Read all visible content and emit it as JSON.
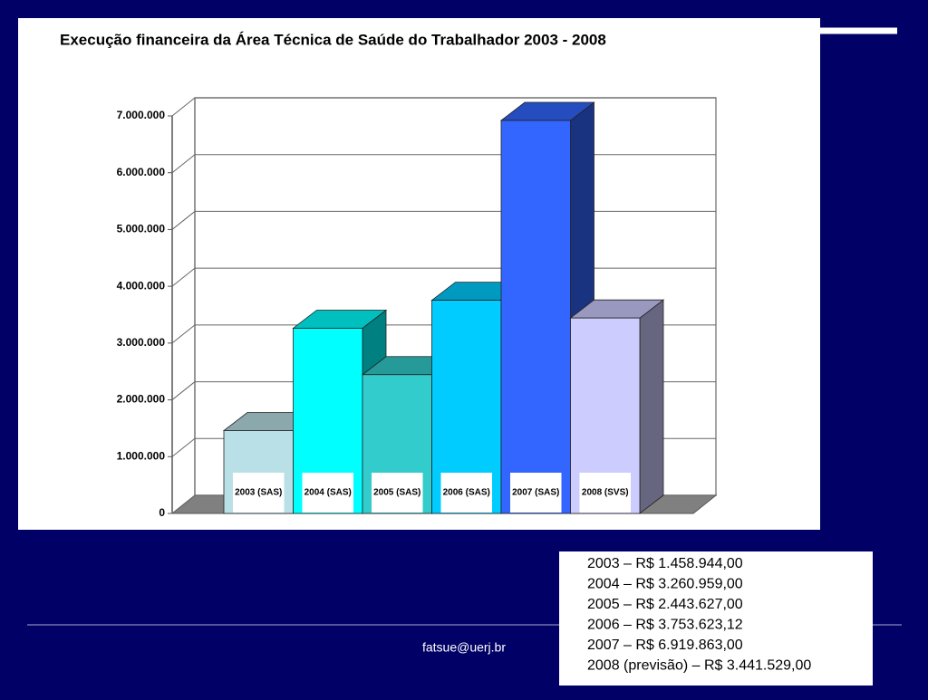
{
  "chart_data": {
    "type": "bar3d",
    "title": "Execução financeira da Área Técnica de Saúde do Trabalhador 2003 - 2008",
    "categories": [
      "2003 (SAS)",
      "2004 (SAS)",
      "2005 (SAS)",
      "2006 (SAS)",
      "2007 (SAS)",
      "2008 (SVS)"
    ],
    "values": [
      1458944,
      3260959,
      2443627,
      3753623.12,
      6919863,
      3441529
    ],
    "colors": [
      "#b9e0e6",
      "#00ffff",
      "#33cccc",
      "#00ccff",
      "#3366ff",
      "#ccccff"
    ],
    "ylim": [
      0,
      7000000
    ],
    "yticks": [
      0,
      {
        "value": 1000000,
        "label": "1.000.000"
      },
      {
        "value": 2000000,
        "label": "2.000.000"
      },
      {
        "value": 3000000,
        "label": "3.000.000"
      },
      {
        "value": 4000000,
        "label": "4.000.000"
      },
      {
        "value": 5000000,
        "label": "5.000.000"
      },
      {
        "value": 6000000,
        "label": "6.000.000"
      },
      {
        "value": 7000000,
        "label": "7.000.000"
      }
    ],
    "grid": true
  },
  "value_list": [
    "2003 – R$ 1.458.944,00",
    "2004 – R$ 3.260.959,00",
    "2005 – R$ 2.443.627,00",
    "2006 – R$ 3.753.623,12",
    "2007 – R$ 6.919.863,00",
    "2008 (previsão) – R$ 3.441.529,00"
  ],
  "footer": "fatsue@uerj.br"
}
